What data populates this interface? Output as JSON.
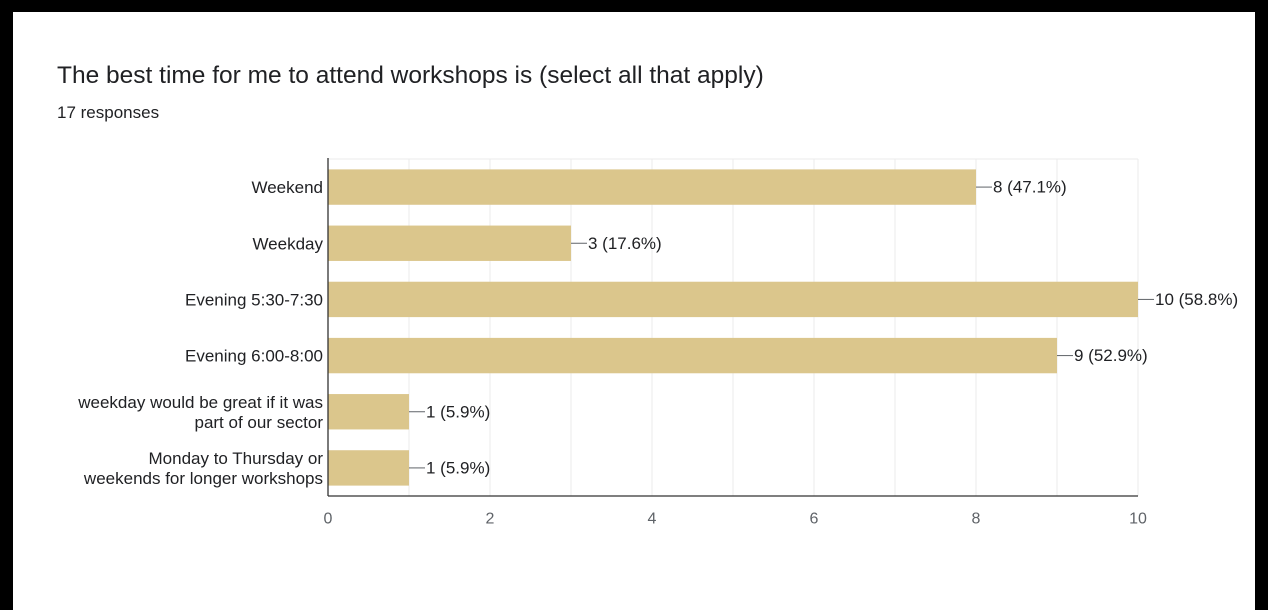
{
  "card": {
    "title": "The best time for me to attend workshops is (select all that apply)",
    "responses": "17 responses"
  },
  "chart_data": {
    "type": "bar",
    "orientation": "horizontal",
    "categories": [
      [
        "Weekend"
      ],
      [
        "Weekday"
      ],
      [
        "Evening 5:30-7:30"
      ],
      [
        "Evening 6:00-8:00"
      ],
      [
        "weekday would be great if it was",
        "part of our sector"
      ],
      [
        "Monday to Thursday or",
        "weekends for longer workshops"
      ]
    ],
    "values": [
      8,
      3,
      10,
      9,
      1,
      1
    ],
    "value_labels": [
      "8 (47.1%)",
      "3 (17.6%)",
      "10 (58.8%)",
      "9 (52.9%)",
      "1 (5.9%)",
      "1 (5.9%)"
    ],
    "xticks": [
      0,
      2,
      4,
      6,
      8,
      10
    ],
    "xlim": [
      0,
      10
    ],
    "grid": true,
    "legend": "none",
    "bar_color": "#dbc68c",
    "grid_color": "#ebebeb",
    "axis_color": "#333333"
  }
}
